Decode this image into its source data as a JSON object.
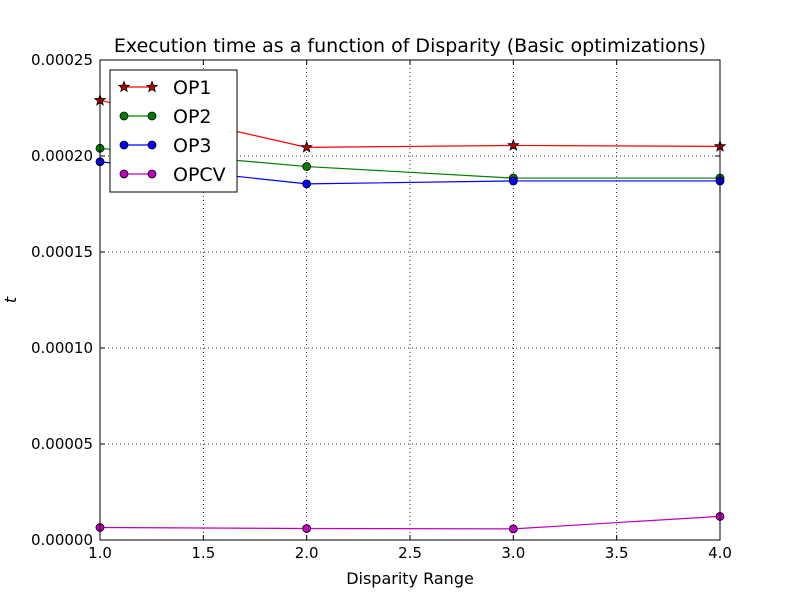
{
  "chart_data": {
    "type": "line",
    "title": "Execution time as a function of Disparity (Basic optimizations)",
    "xlabel": "Disparity Range",
    "ylabel": "t",
    "xlim": [
      1.0,
      4.0
    ],
    "ylim": [
      0.0,
      0.00025
    ],
    "xticks": [
      1.0,
      1.5,
      2.0,
      2.5,
      3.0,
      3.5,
      4.0
    ],
    "xtick_labels": [
      "1.0",
      "1.5",
      "2.0",
      "2.5",
      "3.0",
      "3.5",
      "4.0"
    ],
    "yticks": [
      0.0,
      5e-05,
      0.0001,
      0.00015,
      0.0002,
      0.00025
    ],
    "ytick_labels": [
      "0.00000",
      "0.00005",
      "0.00010",
      "0.00015",
      "0.00020",
      "0.00025"
    ],
    "grid": true,
    "legend_position": "top-left",
    "x": [
      1,
      2,
      3,
      4
    ],
    "series": [
      {
        "name": "OP1",
        "values": [
          0.000229,
          0.0002045,
          0.0002055,
          0.000205
        ],
        "color": "#ff0000",
        "marker": "star"
      },
      {
        "name": "OP2",
        "values": [
          0.000204,
          0.0001945,
          0.0001885,
          0.0001885
        ],
        "color": "#008000",
        "marker": "circle"
      },
      {
        "name": "OP3",
        "values": [
          0.000197,
          0.0001855,
          0.000187,
          0.000187
        ],
        "color": "#0000ff",
        "marker": "circle"
      },
      {
        "name": "OPCV",
        "values": [
          6.5e-06,
          6e-06,
          5.8e-06,
          1.23e-05
        ],
        "color": "#bf00bf",
        "marker": "circle"
      }
    ]
  }
}
